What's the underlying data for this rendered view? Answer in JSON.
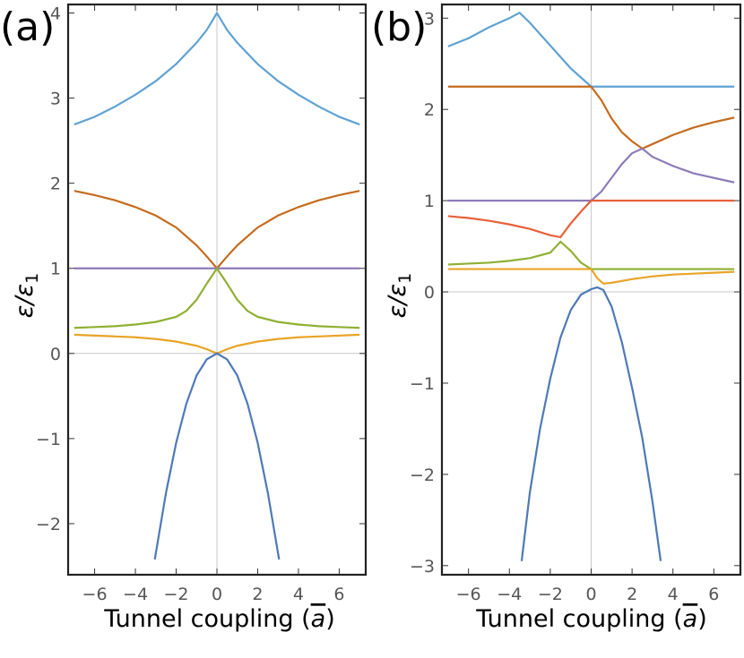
{
  "chart_data": [
    {
      "type": "line",
      "panel_label": "(a)",
      "xlabel": "Tunnel coupling (",
      "xlabel_symbol": "a",
      "xlabel_close": ")",
      "ylabel_main": "ε/ε",
      "ylabel_sub": "1",
      "xlim": [
        -7.3,
        7.3
      ],
      "ylim": [
        -2.6,
        4.1
      ],
      "x_ticks": [
        -6,
        -4,
        -2,
        0,
        2,
        4,
        6
      ],
      "x_tick_labels": [
        "−6",
        "−4",
        "−2",
        "0",
        "2",
        "4",
        "6"
      ],
      "y_ticks": [
        -2,
        -1,
        0,
        1,
        2,
        3,
        4
      ],
      "y_tick_labels": [
        "−2",
        "−1",
        "0",
        "1",
        "2",
        "3",
        "4"
      ],
      "grid": false,
      "series": [
        {
          "color": "#5fa2d2",
          "x": [
            -7,
            -6,
            -5,
            -4,
            -3,
            -2,
            -1,
            -0.5,
            0,
            0.5,
            1,
            2,
            3,
            4,
            5,
            6,
            7
          ],
          "y": [
            2.69,
            2.78,
            2.9,
            3.04,
            3.2,
            3.4,
            3.65,
            3.8,
            4.0,
            3.8,
            3.65,
            3.4,
            3.2,
            3.04,
            2.9,
            2.78,
            2.69
          ]
        },
        {
          "color": "#c56b1d",
          "x": [
            -7,
            -6,
            -5,
            -4,
            -3,
            -2,
            -1,
            -0.5,
            0,
            0.5,
            1,
            2,
            3,
            4,
            5,
            6,
            7
          ],
          "y": [
            1.91,
            1.86,
            1.8,
            1.72,
            1.62,
            1.48,
            1.27,
            1.14,
            1.0,
            1.14,
            1.27,
            1.48,
            1.62,
            1.72,
            1.8,
            1.86,
            1.91
          ]
        },
        {
          "color": "#8b7bb8",
          "x": [
            -7,
            7
          ],
          "y": [
            1.0,
            1.0
          ]
        },
        {
          "color": "#8fb032",
          "x": [
            -7,
            -6,
            -5,
            -4,
            -3,
            -2,
            -1.5,
            -1,
            -0.5,
            0,
            0.5,
            1,
            1.5,
            2,
            3,
            4,
            5,
            6,
            7
          ],
          "y": [
            0.3,
            0.31,
            0.32,
            0.34,
            0.37,
            0.43,
            0.5,
            0.63,
            0.82,
            1.0,
            0.82,
            0.63,
            0.5,
            0.43,
            0.37,
            0.34,
            0.32,
            0.31,
            0.3
          ]
        },
        {
          "color": "#e8a427",
          "x": [
            -7,
            -6,
            -5,
            -4,
            -3,
            -2,
            -1,
            -0.5,
            -0.2,
            0,
            0.2,
            0.5,
            1,
            2,
            3,
            4,
            5,
            6,
            7
          ],
          "y": [
            0.22,
            0.21,
            0.2,
            0.19,
            0.17,
            0.14,
            0.09,
            0.05,
            0.02,
            0.0,
            0.02,
            0.05,
            0.09,
            0.14,
            0.17,
            0.19,
            0.2,
            0.21,
            0.22
          ]
        },
        {
          "color": "#4e79b8",
          "x": [
            -3.05,
            -2.5,
            -2,
            -1.5,
            -1,
            -0.5,
            0,
            0.5,
            1,
            1.5,
            2,
            2.5,
            3.05
          ],
          "y": [
            -2.42,
            -1.64,
            -1.05,
            -0.59,
            -0.26,
            -0.07,
            0.0,
            -0.07,
            -0.26,
            -0.59,
            -1.05,
            -1.64,
            -2.42
          ]
        }
      ]
    },
    {
      "type": "line",
      "panel_label": "(b)",
      "xlabel": "Tunnel coupling (",
      "xlabel_symbol": "a",
      "xlabel_close": ")",
      "ylabel_main": "ε/ε",
      "ylabel_sub": "1",
      "xlim": [
        -7.3,
        7.3
      ],
      "ylim": [
        -3.1,
        3.15
      ],
      "x_ticks": [
        -6,
        -4,
        -2,
        0,
        2,
        4,
        6
      ],
      "x_tick_labels": [
        "−6",
        "−4",
        "−2",
        "0",
        "2",
        "4",
        "6"
      ],
      "y_ticks": [
        -3,
        -2,
        -1,
        0,
        1,
        2,
        3
      ],
      "y_tick_labels": [
        "−3",
        "−2",
        "−1",
        "0",
        "1",
        "2",
        "3"
      ],
      "grid": false,
      "series": [
        {
          "color": "#5fa2d2",
          "x": [
            -7,
            -6,
            -5,
            -4,
            -3.5,
            -3,
            -2,
            -1,
            0,
            7
          ],
          "y": [
            2.69,
            2.78,
            2.9,
            3.0,
            3.06,
            2.95,
            2.7,
            2.45,
            2.25,
            2.25
          ]
        },
        {
          "color": "#c56b1d",
          "x": [
            -7,
            0,
            0.5,
            1,
            1.5,
            2,
            2.5,
            3,
            4,
            5,
            6,
            7
          ],
          "y": [
            2.25,
            2.25,
            2.1,
            1.9,
            1.75,
            1.65,
            1.57,
            1.62,
            1.72,
            1.8,
            1.86,
            1.91
          ]
        },
        {
          "color": "#8b7bb8",
          "x": [
            -7,
            -1,
            -0.5,
            0,
            0.5,
            1,
            1.5,
            2,
            2.5,
            3,
            4,
            5,
            6,
            7
          ],
          "y": [
            1.0,
            1.0,
            1.0,
            1.0,
            1.1,
            1.25,
            1.4,
            1.52,
            1.57,
            1.48,
            1.38,
            1.3,
            1.25,
            1.2
          ]
        },
        {
          "color": "#e8603a",
          "x": [
            -7,
            -6,
            -5,
            -4,
            -3,
            -2,
            -1.5,
            -1,
            -0.5,
            0,
            7
          ],
          "y": [
            0.83,
            0.81,
            0.78,
            0.74,
            0.69,
            0.62,
            0.6,
            0.75,
            0.88,
            1.0,
            1.0
          ]
        },
        {
          "color": "#8fb032",
          "x": [
            -7,
            -6,
            -5,
            -4,
            -3,
            -2,
            -1.5,
            -1,
            -0.5,
            0,
            7
          ],
          "y": [
            0.3,
            0.31,
            0.32,
            0.34,
            0.37,
            0.43,
            0.55,
            0.45,
            0.32,
            0.25,
            0.25
          ]
        },
        {
          "color": "#e8a427",
          "x": [
            -7,
            -1,
            -0.5,
            0,
            0.3,
            0.6,
            1,
            2,
            3,
            4,
            5,
            6,
            7
          ],
          "y": [
            0.25,
            0.25,
            0.25,
            0.25,
            0.15,
            0.09,
            0.1,
            0.14,
            0.17,
            0.19,
            0.2,
            0.21,
            0.22
          ]
        },
        {
          "color": "#4e79b8",
          "x": [
            -3.4,
            -3,
            -2.5,
            -2,
            -1.5,
            -1,
            -0.5,
            0,
            0.3,
            0.6,
            1,
            1.5,
            2,
            2.5,
            3,
            3.4
          ],
          "y": [
            -2.95,
            -2.2,
            -1.5,
            -0.95,
            -0.5,
            -0.2,
            -0.03,
            0.03,
            0.05,
            0.02,
            -0.16,
            -0.55,
            -1.05,
            -1.6,
            -2.3,
            -2.95
          ]
        }
      ]
    }
  ]
}
